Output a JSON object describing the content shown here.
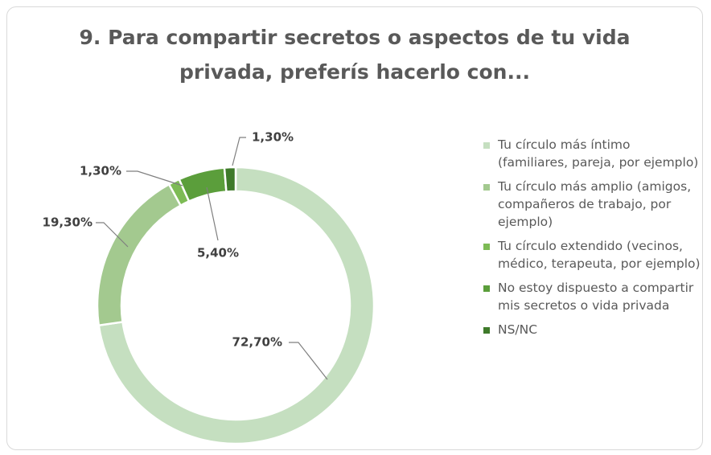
{
  "chart_data": {
    "type": "donut",
    "title": [
      "9. Para compartir secretos o aspectos de tu vida",
      "privada, preferís hacerlo con..."
    ],
    "categories": [
      "Tu círculo más íntimo (familiares, pareja, por ejemplo)",
      "Tu círculo más amplio (amigos, compañeros de trabajo, por ejemplo)",
      "Tu círculo extendido (vecinos, médico, terapeuta, por ejemplo)",
      "No estoy dispuesto a compartir mis secretos o vida privada",
      "NS/NC"
    ],
    "values": [
      72.7,
      19.3,
      1.3,
      5.4,
      1.3
    ],
    "value_labels": [
      "72,70%",
      "19,30%",
      "1,30%",
      "5,40%",
      "1,30%"
    ],
    "colors": [
      "#c5dfc0",
      "#a3c98f",
      "#7dbb55",
      "#5b9e3b",
      "#3e7a2a"
    ],
    "legend": "right"
  }
}
